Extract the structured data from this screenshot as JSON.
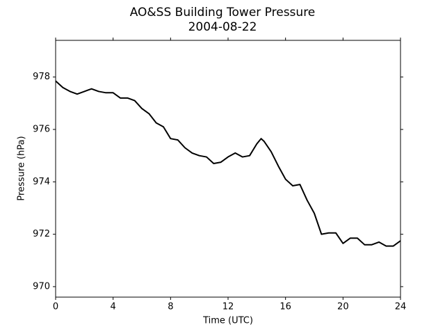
{
  "chart_data": {
    "type": "line",
    "title": "AO&SS Building Tower Pressure",
    "subtitle": "2004-08-22",
    "x_label": "Time (UTC)",
    "y_label": "Pressure (hPa)",
    "x": [
      0,
      0.5,
      1,
      1.5,
      2,
      2.5,
      3,
      3.5,
      4,
      4.5,
      5,
      5.5,
      6,
      6.5,
      7,
      7.5,
      8,
      8.5,
      9,
      9.5,
      10,
      10.5,
      11,
      11.5,
      12,
      12.5,
      13,
      13.5,
      14,
      14.3,
      14.5,
      15,
      15.5,
      16,
      16.5,
      17,
      17.5,
      18,
      18.5,
      19,
      19.5,
      20,
      20.5,
      21,
      21.5,
      22,
      22.5,
      23,
      23.5,
      24
    ],
    "series": [
      {
        "name": "Pressure",
        "color": "#000000",
        "values": [
          977.85,
          977.6,
          977.45,
          977.35,
          977.45,
          977.55,
          977.45,
          977.4,
          977.4,
          977.2,
          977.2,
          977.1,
          976.8,
          976.6,
          976.25,
          976.1,
          975.65,
          975.6,
          975.3,
          975.1,
          975.0,
          974.95,
          974.7,
          974.75,
          974.95,
          975.1,
          974.95,
          975.0,
          975.45,
          975.65,
          975.55,
          975.15,
          974.6,
          974.1,
          973.85,
          973.9,
          973.3,
          972.8,
          972.0,
          972.05,
          972.05,
          971.65,
          971.85,
          971.85,
          971.6,
          971.6,
          971.7,
          971.55,
          971.55,
          971.75
        ]
      }
    ],
    "xlim": [
      0,
      24
    ],
    "xticks": [
      0,
      4,
      8,
      12,
      16,
      20,
      24
    ],
    "ylim": [
      969.6,
      979.4
    ],
    "yticks": [
      970,
      972,
      974,
      976,
      978
    ],
    "grid": false
  }
}
